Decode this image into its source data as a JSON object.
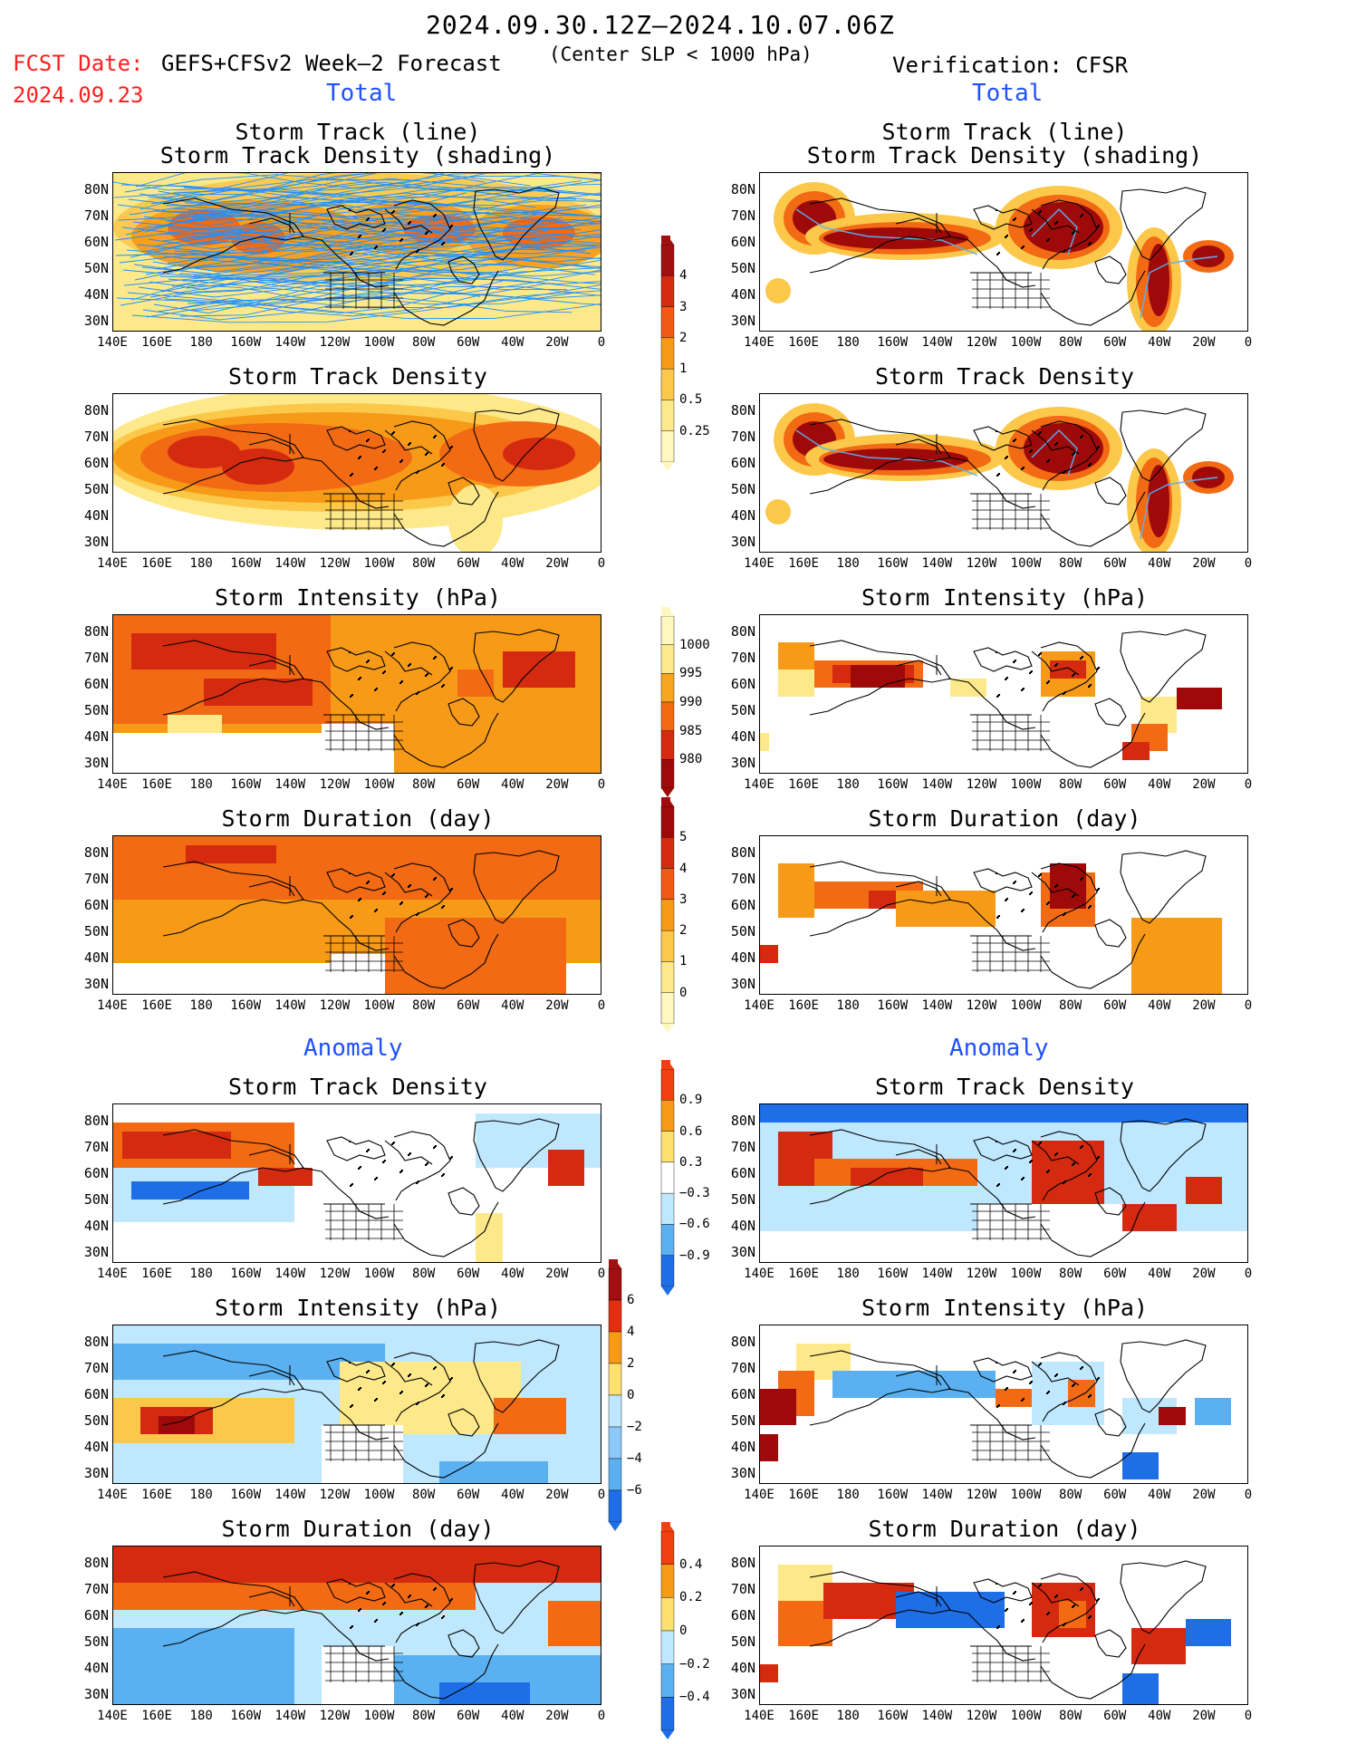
{
  "header": {
    "title": "2024.09.30.12Z–2024.10.07.06Z",
    "fcst_label": "FCST Date:",
    "fcst_date": "2024.09.23",
    "model": "GEFS+CFSv2 Week–2 Forecast",
    "center_slp": "(Center SLP < 1000 hPa)",
    "verification": "Verification: CFSR",
    "total_left": "Total",
    "total_right": "Total",
    "anomaly_left": "Anomaly",
    "anomaly_right": "Anomaly"
  },
  "axes": {
    "lat_ticks": [
      "80N",
      "70N",
      "60N",
      "50N",
      "40N",
      "30N"
    ],
    "lon_ticks": [
      "140E",
      "160E",
      "180",
      "160W",
      "140W",
      "120W",
      "100W",
      "80W",
      "60W",
      "40W",
      "20W",
      "0"
    ]
  },
  "panels": {
    "track": {
      "title1": "Storm Track (line)",
      "title2": "Storm Track Density (shading)"
    },
    "density": {
      "title": "Storm Track Density"
    },
    "intensity": {
      "title": "Storm Intensity (hPa)"
    },
    "duration": {
      "title": "Storm Duration (day)"
    },
    "density_anom": {
      "title": "Storm Track Density"
    },
    "intensity_anom": {
      "title": "Storm Intensity (hPa)"
    },
    "duration_anom": {
      "title": "Storm Duration (day)"
    }
  },
  "colorbars": {
    "density": {
      "labels": [
        "4",
        "3",
        "2",
        "1",
        "0.5",
        "0.25"
      ],
      "colors": [
        "#a01010",
        "#d42a10",
        "#f05a14",
        "#f79a18",
        "#fbc84a",
        "#fde88a",
        "#fff7c0"
      ]
    },
    "intensity": {
      "labels": [
        "1000",
        "995",
        "990",
        "985",
        "980"
      ],
      "colors": [
        "#fff7c0",
        "#fde88a",
        "#f7a520",
        "#f26a14",
        "#d42a10",
        "#9e0a0a"
      ]
    },
    "duration": {
      "labels": [
        "5",
        "4",
        "3",
        "2",
        "1",
        "0"
      ],
      "colors": [
        "#9e0a0a",
        "#d42a10",
        "#f05a14",
        "#f79a18",
        "#fbc84a",
        "#fde88a",
        "#fff7c0"
      ]
    },
    "density_anom": {
      "labels": [
        "0.9",
        "0.6",
        "0.3",
        "−0.3",
        "−0.6",
        "−0.9"
      ],
      "colors": [
        "#f04010",
        "#f79a18",
        "#fde070",
        "#ffffff",
        "#bfe8ff",
        "#5ab0f0",
        "#1e6ee6"
      ]
    },
    "intensity_anom": {
      "labels": [
        "6",
        "4",
        "2",
        "0",
        "−2",
        "−4",
        "−6"
      ],
      "colors": [
        "#a01010",
        "#e03010",
        "#f79a18",
        "#fde070",
        "#bfe8ff",
        "#8cc8f8",
        "#5ab0f0",
        "#1e6ee6"
      ]
    },
    "duration_anom": {
      "labels": [
        "0.4",
        "0.2",
        "0",
        "−0.2",
        "−0.4"
      ],
      "colors": [
        "#f04010",
        "#f79a18",
        "#fde070",
        "#bfe8ff",
        "#5ab0f0",
        "#1e6ee6"
      ]
    }
  },
  "palette": {
    "dark_red": "#9e0a0a",
    "red": "#d42a10",
    "orange": "#f26a14",
    "light_orange": "#f79a18",
    "yellow": "#fbc84a",
    "pale": "#fde88a",
    "light_blue": "#bfe8ff",
    "mid_blue": "#5ab0f0",
    "blue": "#1e6ee6",
    "track_line": "#1e90ff",
    "header_red": "#ff2020",
    "header_blue": "#2050ff"
  }
}
